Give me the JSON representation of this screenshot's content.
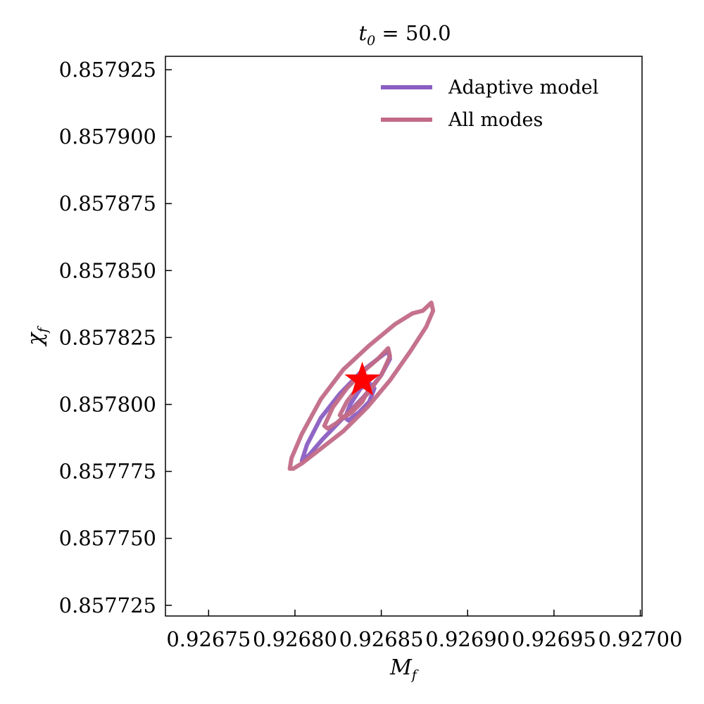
{
  "chart_data": {
    "type": "line",
    "title_var": "t",
    "title_sub": "0",
    "title_rest": " = 50.0",
    "xlabel_var": "M",
    "xlabel_sub": "f",
    "ylabel_var": "χ",
    "ylabel_sub": "f",
    "xlim": [
      0.926725,
      0.927001
    ],
    "ylim": [
      0.857721,
      0.85793
    ],
    "x_ticks": [
      0.92675,
      0.9268,
      0.92685,
      0.9269,
      0.92695,
      0.927
    ],
    "x_tick_labels": [
      "0.92675",
      "0.92680",
      "0.92685",
      "0.92690",
      "0.92695",
      "0.92700"
    ],
    "y_ticks": [
      0.857725,
      0.85775,
      0.857775,
      0.8578,
      0.857825,
      0.85785,
      0.857875,
      0.8579,
      0.857925
    ],
    "y_tick_labels": [
      "0.857725",
      "0.857750",
      "0.857775",
      "0.857800",
      "0.857825",
      "0.857850",
      "0.857875",
      "0.857900",
      "0.857925"
    ],
    "grid": false,
    "legend_position": "top-right",
    "series": [
      {
        "name": "Adaptive model",
        "color": "#8a5ec2",
        "contours": [
          [
            [
              0.926804,
              0.857779
            ],
            [
              0.926807,
              0.857785
            ],
            [
              0.926815,
              0.857795
            ],
            [
              0.926826,
              0.857804
            ],
            [
              0.926838,
              0.857812
            ],
            [
              0.926848,
              0.857817
            ],
            [
              0.926854,
              0.85782
            ],
            [
              0.926855,
              0.857817
            ],
            [
              0.92685,
              0.857811
            ],
            [
              0.92684,
              0.857803
            ],
            [
              0.926828,
              0.857795
            ],
            [
              0.926816,
              0.857787
            ],
            [
              0.926808,
              0.857781
            ],
            [
              0.926804,
              0.857779
            ]
          ],
          [
            [
              0.926829,
              0.857795
            ],
            [
              0.926832,
              0.8578
            ],
            [
              0.926838,
              0.857806
            ],
            [
              0.926843,
              0.857808
            ],
            [
              0.926846,
              0.857806
            ],
            [
              0.926843,
              0.857801
            ],
            [
              0.926837,
              0.857797
            ],
            [
              0.926831,
              0.857794
            ],
            [
              0.926829,
              0.857795
            ]
          ]
        ]
      },
      {
        "name": "All modes",
        "color": "#c26a87",
        "contours": [
          [
            [
              0.926797,
              0.857776
            ],
            [
              0.926798,
              0.85778
            ],
            [
              0.926804,
              0.857789
            ],
            [
              0.926815,
              0.857802
            ],
            [
              0.926828,
              0.857813
            ],
            [
              0.926843,
              0.857822
            ],
            [
              0.926858,
              0.85783
            ],
            [
              0.926868,
              0.857834
            ],
            [
              0.926874,
              0.857835
            ],
            [
              0.926879,
              0.857838
            ],
            [
              0.92688,
              0.857835
            ],
            [
              0.926876,
              0.857829
            ],
            [
              0.926867,
              0.85782
            ],
            [
              0.926855,
              0.857809
            ],
            [
              0.926842,
              0.857799
            ],
            [
              0.926828,
              0.85779
            ],
            [
              0.926814,
              0.857783
            ],
            [
              0.926804,
              0.857778
            ],
            [
              0.926799,
              0.857776
            ],
            [
              0.926797,
              0.857776
            ]
          ],
          [
            [
              0.926817,
              0.857792
            ],
            [
              0.926822,
              0.857799
            ],
            [
              0.92683,
              0.857806
            ],
            [
              0.926839,
              0.857812
            ],
            [
              0.926848,
              0.857817
            ],
            [
              0.926854,
              0.857821
            ],
            [
              0.926855,
              0.857818
            ],
            [
              0.92685,
              0.857811
            ],
            [
              0.926842,
              0.857804
            ],
            [
              0.926833,
              0.857798
            ],
            [
              0.926824,
              0.857793
            ],
            [
              0.926819,
              0.857791
            ],
            [
              0.926817,
              0.857792
            ]
          ],
          [
            [
              0.926826,
              0.857796
            ],
            [
              0.92683,
              0.857801
            ],
            [
              0.926836,
              0.857806
            ],
            [
              0.926841,
              0.857808
            ],
            [
              0.926843,
              0.857806
            ],
            [
              0.926839,
              0.857801
            ],
            [
              0.926833,
              0.857797
            ],
            [
              0.926828,
              0.857795
            ],
            [
              0.926826,
              0.857796
            ]
          ]
        ]
      }
    ],
    "marker": {
      "shape": "star",
      "color": "#ff0000",
      "x": 0.926839,
      "y": 0.857809
    }
  }
}
